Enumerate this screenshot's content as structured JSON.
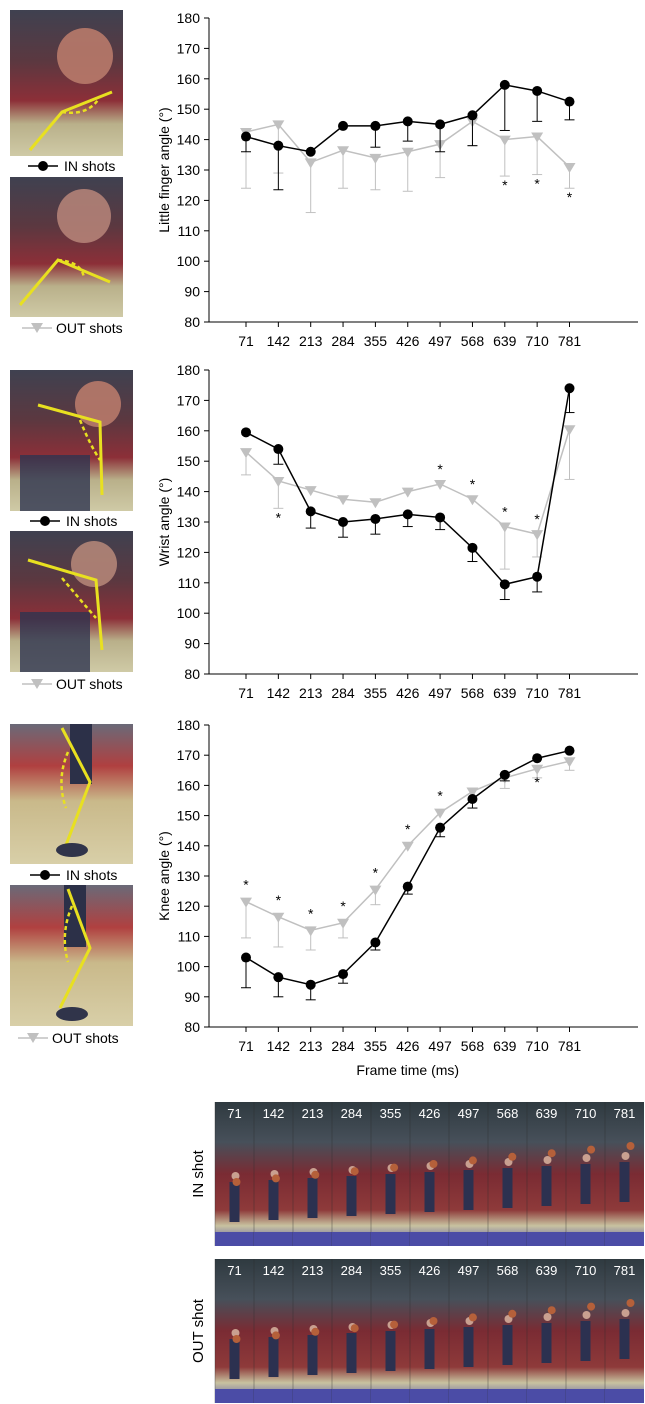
{
  "chart_data": [
    {
      "type": "line",
      "ylabel": "Little finger angle (°)",
      "ylim": [
        80,
        180
      ],
      "yticks": [
        80,
        90,
        100,
        110,
        120,
        130,
        140,
        150,
        160,
        170,
        180
      ],
      "categories": [
        "71",
        "142",
        "213",
        "284",
        "355",
        "426",
        "497",
        "568",
        "639",
        "710",
        "781"
      ],
      "series": [
        {
          "name": "IN shots",
          "color": "#000000",
          "marker": "circle",
          "values": [
            141,
            138,
            136,
            144.5,
            144.5,
            146,
            145,
            148,
            158,
            156,
            152.5
          ],
          "error": [
            5,
            14.5,
            0,
            0,
            7,
            6.5,
            9,
            10,
            15,
            10,
            6
          ]
        },
        {
          "name": "OUT shots",
          "color": "#c0c0c0",
          "marker": "triangle-down",
          "values": [
            142.5,
            145,
            132.5,
            136.5,
            134,
            136,
            138.5,
            146,
            140,
            141,
            131
          ],
          "error": [
            18.5,
            16,
            16.5,
            12.5,
            10.5,
            13,
            11,
            8,
            12,
            12.5,
            7
          ]
        }
      ],
      "significance": [
        "",
        "",
        "",
        "",
        "",
        "",
        "",
        "",
        "*",
        "*",
        "*"
      ]
    },
    {
      "type": "line",
      "ylabel": "Wrist angle (°)",
      "ylim": [
        80,
        180
      ],
      "yticks": [
        80,
        90,
        100,
        110,
        120,
        130,
        140,
        150,
        160,
        170,
        180
      ],
      "categories": [
        "71",
        "142",
        "213",
        "284",
        "355",
        "426",
        "497",
        "568",
        "639",
        "710",
        "781"
      ],
      "series": [
        {
          "name": "IN shots",
          "color": "#000000",
          "marker": "circle",
          "values": [
            159.5,
            154,
            133.5,
            130,
            131,
            132.5,
            131.5,
            121.5,
            109.5,
            112,
            174
          ],
          "error": [
            0,
            5,
            5.5,
            5,
            5,
            4,
            4,
            4.5,
            5,
            5,
            8
          ]
        },
        {
          "name": "OUT shots",
          "color": "#c0c0c0",
          "marker": "triangle-down",
          "values": [
            153,
            143.5,
            140.5,
            137.5,
            136.5,
            140,
            142.5,
            137.5,
            128.5,
            126,
            160.5
          ],
          "error": [
            7.5,
            9,
            0,
            0,
            0,
            0,
            0,
            0,
            14,
            7.5,
            16.5
          ]
        }
      ],
      "significance": [
        "",
        "*",
        "",
        "",
        "",
        "",
        "*",
        "*",
        "*",
        "*",
        ""
      ]
    },
    {
      "type": "line",
      "ylabel": "Knee angle (°)",
      "xlabel": "Frame time (ms)",
      "ylim": [
        80,
        180
      ],
      "yticks": [
        80,
        90,
        100,
        110,
        120,
        130,
        140,
        150,
        160,
        170,
        180
      ],
      "categories": [
        "71",
        "142",
        "213",
        "284",
        "355",
        "426",
        "497",
        "568",
        "639",
        "710",
        "781"
      ],
      "series": [
        {
          "name": "IN shots",
          "color": "#000000",
          "marker": "circle",
          "values": [
            103,
            96.5,
            94,
            97.5,
            108,
            126.5,
            146,
            155.5,
            163.5,
            169,
            171.5
          ],
          "error": [
            10,
            6.5,
            5,
            3,
            2.5,
            2.5,
            3,
            3,
            2,
            0,
            0
          ]
        },
        {
          "name": "OUT shots",
          "color": "#c0c0c0",
          "marker": "triangle-down",
          "values": [
            121.5,
            116.5,
            112,
            114.5,
            125.5,
            140,
            151,
            158,
            162.5,
            165.5,
            168
          ],
          "error": [
            12,
            10,
            6.5,
            5,
            5,
            0,
            0,
            0,
            3.5,
            3,
            3
          ]
        }
      ],
      "significance": [
        "*",
        "*",
        "*",
        "*",
        "*",
        "*",
        "*",
        "",
        "",
        "*",
        ""
      ]
    }
  ],
  "legend_panels": [
    {
      "in_label": "IN shots",
      "out_label": "OUT shots"
    },
    {
      "in_label": "IN shots",
      "out_label": "OUT shots"
    },
    {
      "in_label": "IN shots",
      "out_label": "OUT shots"
    }
  ],
  "filmstrips": [
    {
      "row_label": "IN shot",
      "frames": [
        "71",
        "142",
        "213",
        "284",
        "355",
        "426",
        "497",
        "568",
        "639",
        "710",
        "781"
      ]
    },
    {
      "row_label": "OUT shot",
      "frames": [
        "71",
        "142",
        "213",
        "284",
        "355",
        "426",
        "497",
        "568",
        "639",
        "710",
        "781"
      ]
    }
  ],
  "colors": {
    "in_series": "#000000",
    "out_series": "#c0c0c0",
    "angle_line": "#e8e020",
    "court_wall": "#3c3e48",
    "court_seats": "#8a3036",
    "court_floor": "#c9c6a4",
    "court_blue": "#4a4aa8"
  }
}
